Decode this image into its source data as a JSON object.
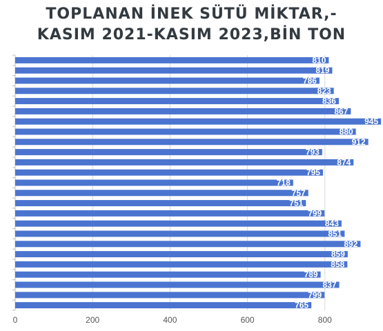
{
  "title_line_1": "TOPLANAN İNEK SÜTÜ MİKTAR,-",
  "title_line_2": "KASIM 2021-KASIM 2023,BİN TON",
  "colors": {
    "bar": "#4a74cf",
    "bar_label_background": "#4a74cf",
    "grid": "#d9d9d9",
    "background": "#ffffff"
  },
  "chart_data": {
    "type": "bar",
    "orientation": "horizontal",
    "title": "TOPLANAN İNEK SÜTÜ MİKTAR,- KASIM 2021-KASIM 2023,BİN TON",
    "values": [
      810,
      819,
      786,
      823,
      836,
      867,
      945,
      880,
      912,
      793,
      874,
      795,
      718,
      757,
      751,
      799,
      843,
      851,
      892,
      859,
      858,
      789,
      837,
      799,
      765
    ],
    "xlim": [
      0,
      945
    ],
    "xticks": [
      0,
      200,
      400,
      600,
      800
    ],
    "grid": true,
    "legend": "none"
  }
}
